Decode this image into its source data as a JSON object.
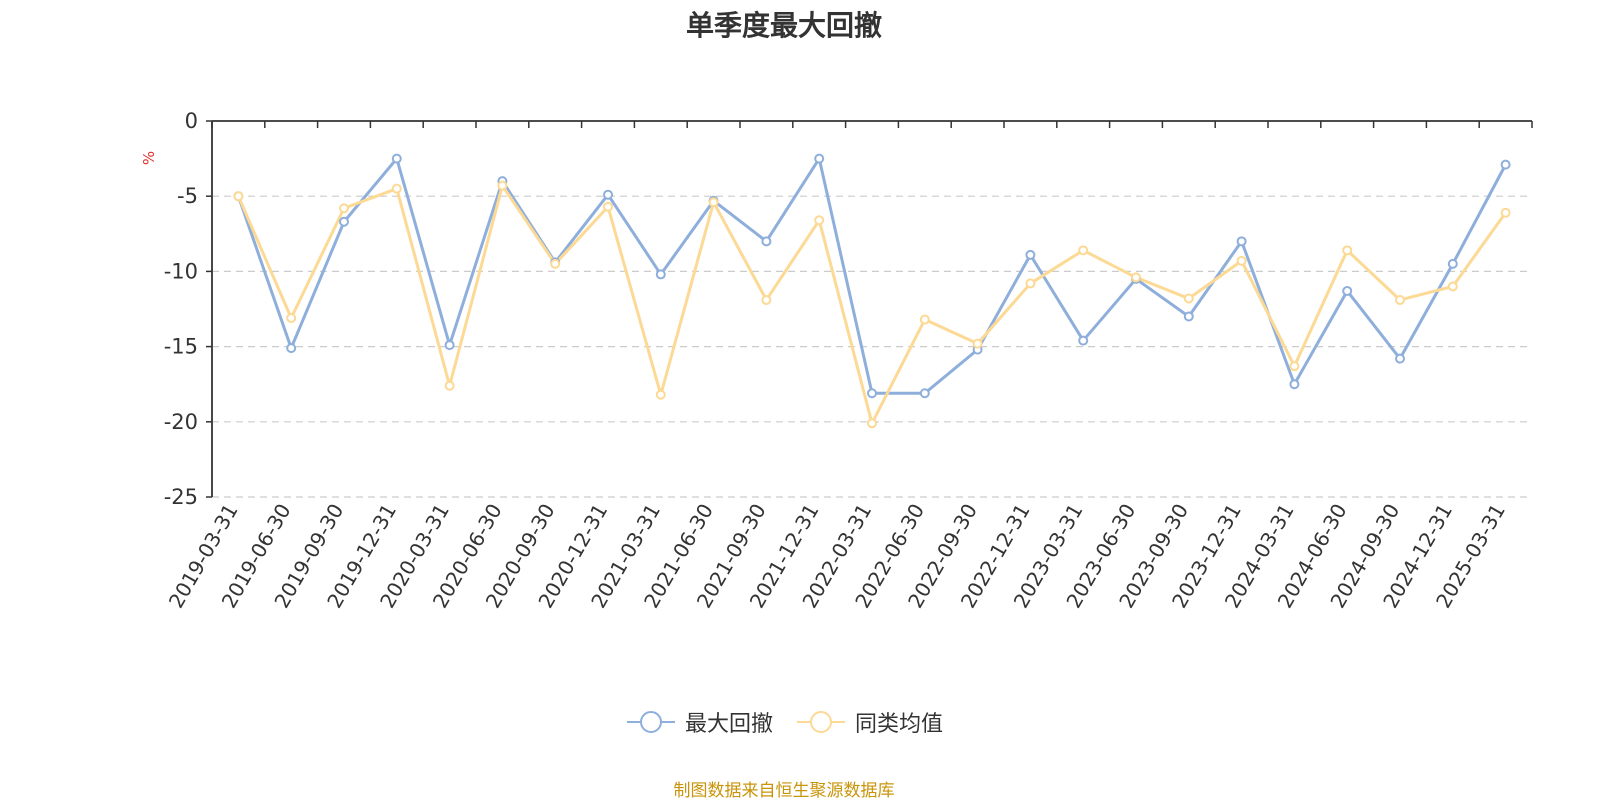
{
  "chart_data": {
    "type": "line",
    "title": "单季度最大回撤",
    "ylabel": "%",
    "ylim": [
      -25,
      0
    ],
    "yticks": [
      0,
      -5,
      -10,
      -15,
      -20,
      -25
    ],
    "grid": true,
    "legend_position": "bottom",
    "source": "制图数据来自恒生聚源数据库",
    "categories": [
      "2019-03-31",
      "2019-06-30",
      "2019-09-30",
      "2019-12-31",
      "2020-03-31",
      "2020-06-30",
      "2020-09-30",
      "2020-12-31",
      "2021-03-31",
      "2021-06-30",
      "2021-09-30",
      "2021-12-31",
      "2022-03-31",
      "2022-06-30",
      "2022-09-30",
      "2022-12-31",
      "2023-03-31",
      "2023-06-30",
      "2023-09-30",
      "2023-12-31",
      "2024-03-31",
      "2024-06-30",
      "2024-09-30",
      "2024-12-31",
      "2025-03-31"
    ],
    "series": [
      {
        "name": "最大回撤",
        "color": "#8eaedb",
        "values": [
          -5.0,
          -15.1,
          -6.7,
          -2.5,
          -14.9,
          -4.0,
          -9.4,
          -4.9,
          -10.2,
          -5.3,
          -8.0,
          -2.5,
          -18.1,
          -18.1,
          -15.2,
          -8.9,
          -14.6,
          -10.5,
          -13.0,
          -8.0,
          -17.5,
          -11.3,
          -15.8,
          -9.5,
          -2.9
        ]
      },
      {
        "name": "同类均值",
        "color": "#fcd994",
        "values": [
          -5.0,
          -13.1,
          -5.8,
          -4.5,
          -17.6,
          -4.3,
          -9.5,
          -5.7,
          -18.2,
          -5.4,
          -11.9,
          -6.6,
          -20.1,
          -13.2,
          -14.8,
          -10.8,
          -8.6,
          -10.4,
          -11.8,
          -9.3,
          -16.3,
          -8.6,
          -11.9,
          -11.0,
          -6.1
        ]
      }
    ]
  }
}
